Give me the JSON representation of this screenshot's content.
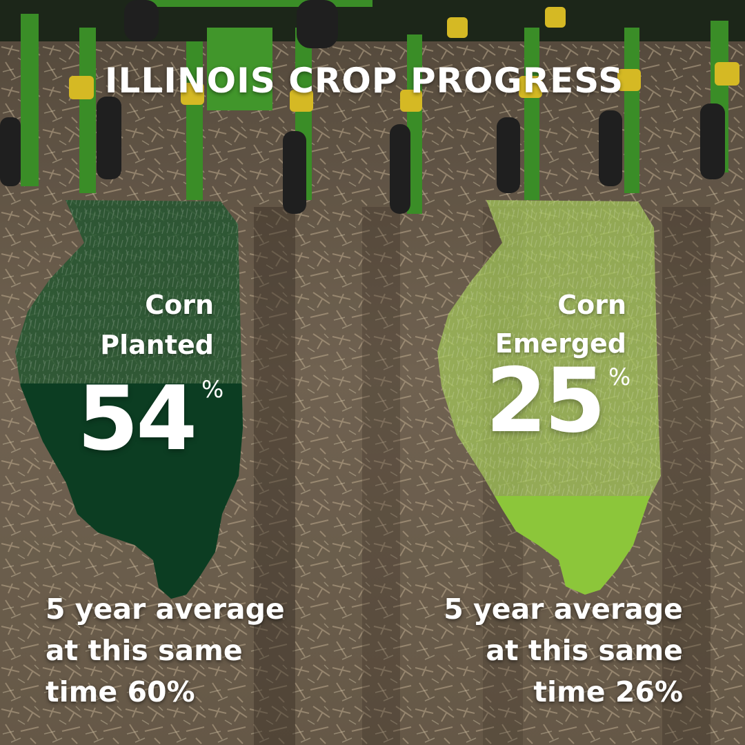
{
  "title": "ILLINOIS CROP PROGRESS",
  "colors": {
    "planted_fill": "#0c3d22",
    "planted_overlay": "#22572f",
    "emerged_fill": "#8cc63a",
    "emerged_overlay": "#a4c85a",
    "machine_green": "#3f9a2b",
    "soil": "#6b5d4c"
  },
  "left_panel": {
    "label_line1": "Corn",
    "label_line2": "Planted",
    "value": "54",
    "percent_sign": "%",
    "progress_fraction": 0.54,
    "average_line1": "5 year average",
    "average_line2": "at this same",
    "average_line3": "time 60%"
  },
  "right_panel": {
    "label_line1": "Corn",
    "label_line2": "Emerged",
    "value": "25",
    "percent_sign": "%",
    "progress_fraction": 0.25,
    "average_line1": "5 year average",
    "average_line2": "at this same",
    "average_line3": "time 26%"
  }
}
